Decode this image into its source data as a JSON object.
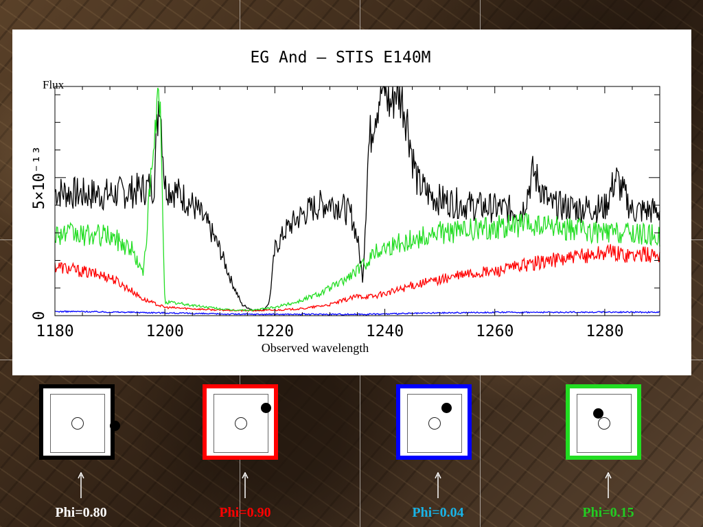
{
  "chart_data": {
    "type": "line",
    "title": "EG And  —  STIS E140M",
    "xlabel": "Observed wavelength",
    "ylabel": "Flux",
    "xlim": [
      1180,
      1290
    ],
    "ylim": [
      0,
      8.3e-13
    ],
    "x_ticks": [
      1180,
      1200,
      1220,
      1240,
      1260,
      1280
    ],
    "y_ticks": [
      {
        "value": 0,
        "label": "0"
      },
      {
        "value": 5e-13,
        "label": "5×10⁻¹³"
      }
    ],
    "grid": false,
    "series": [
      {
        "color": "#000000",
        "x": [
          1180,
          1185,
          1190,
          1194,
          1196,
          1198,
          1199,
          1200,
          1202,
          1204,
          1206,
          1208,
          1210,
          1212,
          1214,
          1216,
          1218,
          1219,
          1220,
          1222,
          1224,
          1226,
          1228,
          1230,
          1232,
          1234,
          1235,
          1236,
          1237,
          1238,
          1239,
          1240,
          1241,
          1242,
          1243,
          1244,
          1245,
          1246,
          1248,
          1250,
          1255,
          1260,
          1265,
          1267,
          1270,
          1275,
          1280,
          1282,
          1285,
          1290
        ],
        "y": [
          4.5,
          4.4,
          4.4,
          4.5,
          4.6,
          4.7,
          8.3,
          4.7,
          4.5,
          4.2,
          3.8,
          3.2,
          2.4,
          1.3,
          0.4,
          0.2,
          0.2,
          0.5,
          2.4,
          3.1,
          3.5,
          3.8,
          4.0,
          4.1,
          4.0,
          3.6,
          2.8,
          1.3,
          6.0,
          7.3,
          8.0,
          8.3,
          7.6,
          8.3,
          8.0,
          7.2,
          5.8,
          4.8,
          4.4,
          4.2,
          4.0,
          3.9,
          3.8,
          5.2,
          4.0,
          3.9,
          3.9,
          5.0,
          3.8,
          3.8
        ]
      },
      {
        "color": "#ff0000",
        "x": [
          1180,
          1185,
          1190,
          1194,
          1196,
          1200,
          1205,
          1210,
          1215,
          1220,
          1225,
          1230,
          1235,
          1238,
          1240,
          1242,
          1245,
          1250,
          1255,
          1260,
          1265,
          1270,
          1275,
          1280,
          1285,
          1290
        ],
        "y": [
          1.8,
          1.6,
          1.4,
          0.9,
          0.6,
          0.3,
          0.25,
          0.2,
          0.18,
          0.2,
          0.25,
          0.4,
          0.7,
          0.7,
          0.8,
          0.9,
          1.1,
          1.3,
          1.5,
          1.6,
          1.8,
          2.0,
          2.1,
          2.3,
          2.2,
          2.2
        ]
      },
      {
        "color": "#0000ff",
        "x": [
          1180,
          1185,
          1190,
          1195,
          1200,
          1205,
          1210,
          1215,
          1220,
          1225,
          1230,
          1235,
          1240,
          1245,
          1250,
          1260,
          1270,
          1280,
          1290
        ],
        "y": [
          0.15,
          0.15,
          0.13,
          0.12,
          0.1,
          0.08,
          0.06,
          0.05,
          0.05,
          0.05,
          0.05,
          0.05,
          0.06,
          0.08,
          0.1,
          0.12,
          0.12,
          0.13,
          0.12
        ]
      },
      {
        "color": "#22dd22",
        "x": [
          1180,
          1185,
          1190,
          1194,
          1196,
          1199,
          1200,
          1204,
          1208,
          1212,
          1216,
          1220,
          1224,
          1228,
          1232,
          1236,
          1238,
          1240,
          1242,
          1244,
          1246,
          1248,
          1250,
          1255,
          1260,
          1265,
          1270,
          1275,
          1280,
          1285,
          1290
        ],
        "y": [
          3.0,
          2.9,
          2.9,
          2.4,
          1.5,
          8.3,
          0.5,
          0.4,
          0.3,
          0.2,
          0.2,
          0.3,
          0.5,
          0.8,
          1.2,
          1.8,
          2.3,
          2.5,
          2.6,
          2.7,
          2.8,
          2.9,
          3.0,
          3.1,
          3.2,
          3.3,
          3.2,
          3.1,
          3.0,
          3.0,
          2.9
        ]
      }
    ]
  },
  "phase_panels": [
    {
      "label": "Phi=0.80",
      "color": "#000000",
      "label_color": "#ffffff"
    },
    {
      "label": "Phi=0.90",
      "color": "#ff0000",
      "label_color": "#ff0000"
    },
    {
      "label": "Phi=0.04",
      "color": "#0000ff",
      "label_color": "#19b3e6"
    },
    {
      "label": "Phi=0.15",
      "color": "#22dd22",
      "label_color": "#22cc22"
    }
  ]
}
